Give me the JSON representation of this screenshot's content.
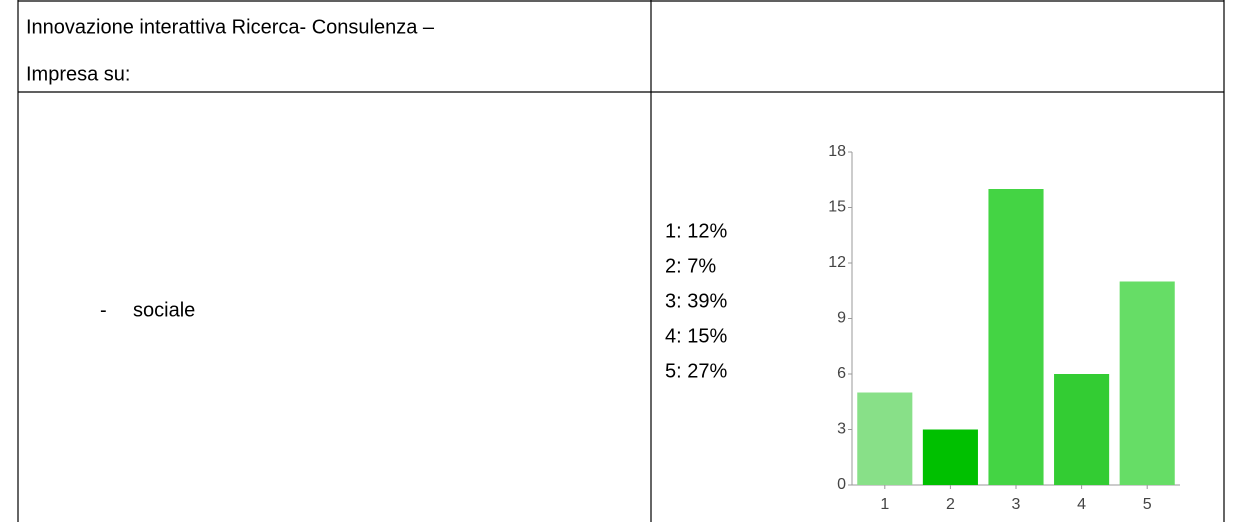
{
  "table": {
    "header_lines": [
      "Innovazione interattiva Ricerca- Consulenza –",
      "Impresa su:"
    ],
    "row": {
      "bullet": "-",
      "label": "sociale",
      "percentages": [
        "1: 12%",
        "2: 7%",
        "3: 39%",
        "4: 15%",
        "5: 27%"
      ]
    }
  },
  "chart_data": {
    "type": "bar",
    "categories": [
      "1",
      "2",
      "3",
      "4",
      "5"
    ],
    "values": [
      5,
      3,
      16,
      6,
      11
    ],
    "colors": [
      "#88e088",
      "#00c000",
      "#44d444",
      "#33cc33",
      "#66dd66"
    ],
    "ylim": [
      0,
      18
    ],
    "yticks": [
      0,
      3,
      6,
      9,
      12,
      15,
      18
    ]
  }
}
